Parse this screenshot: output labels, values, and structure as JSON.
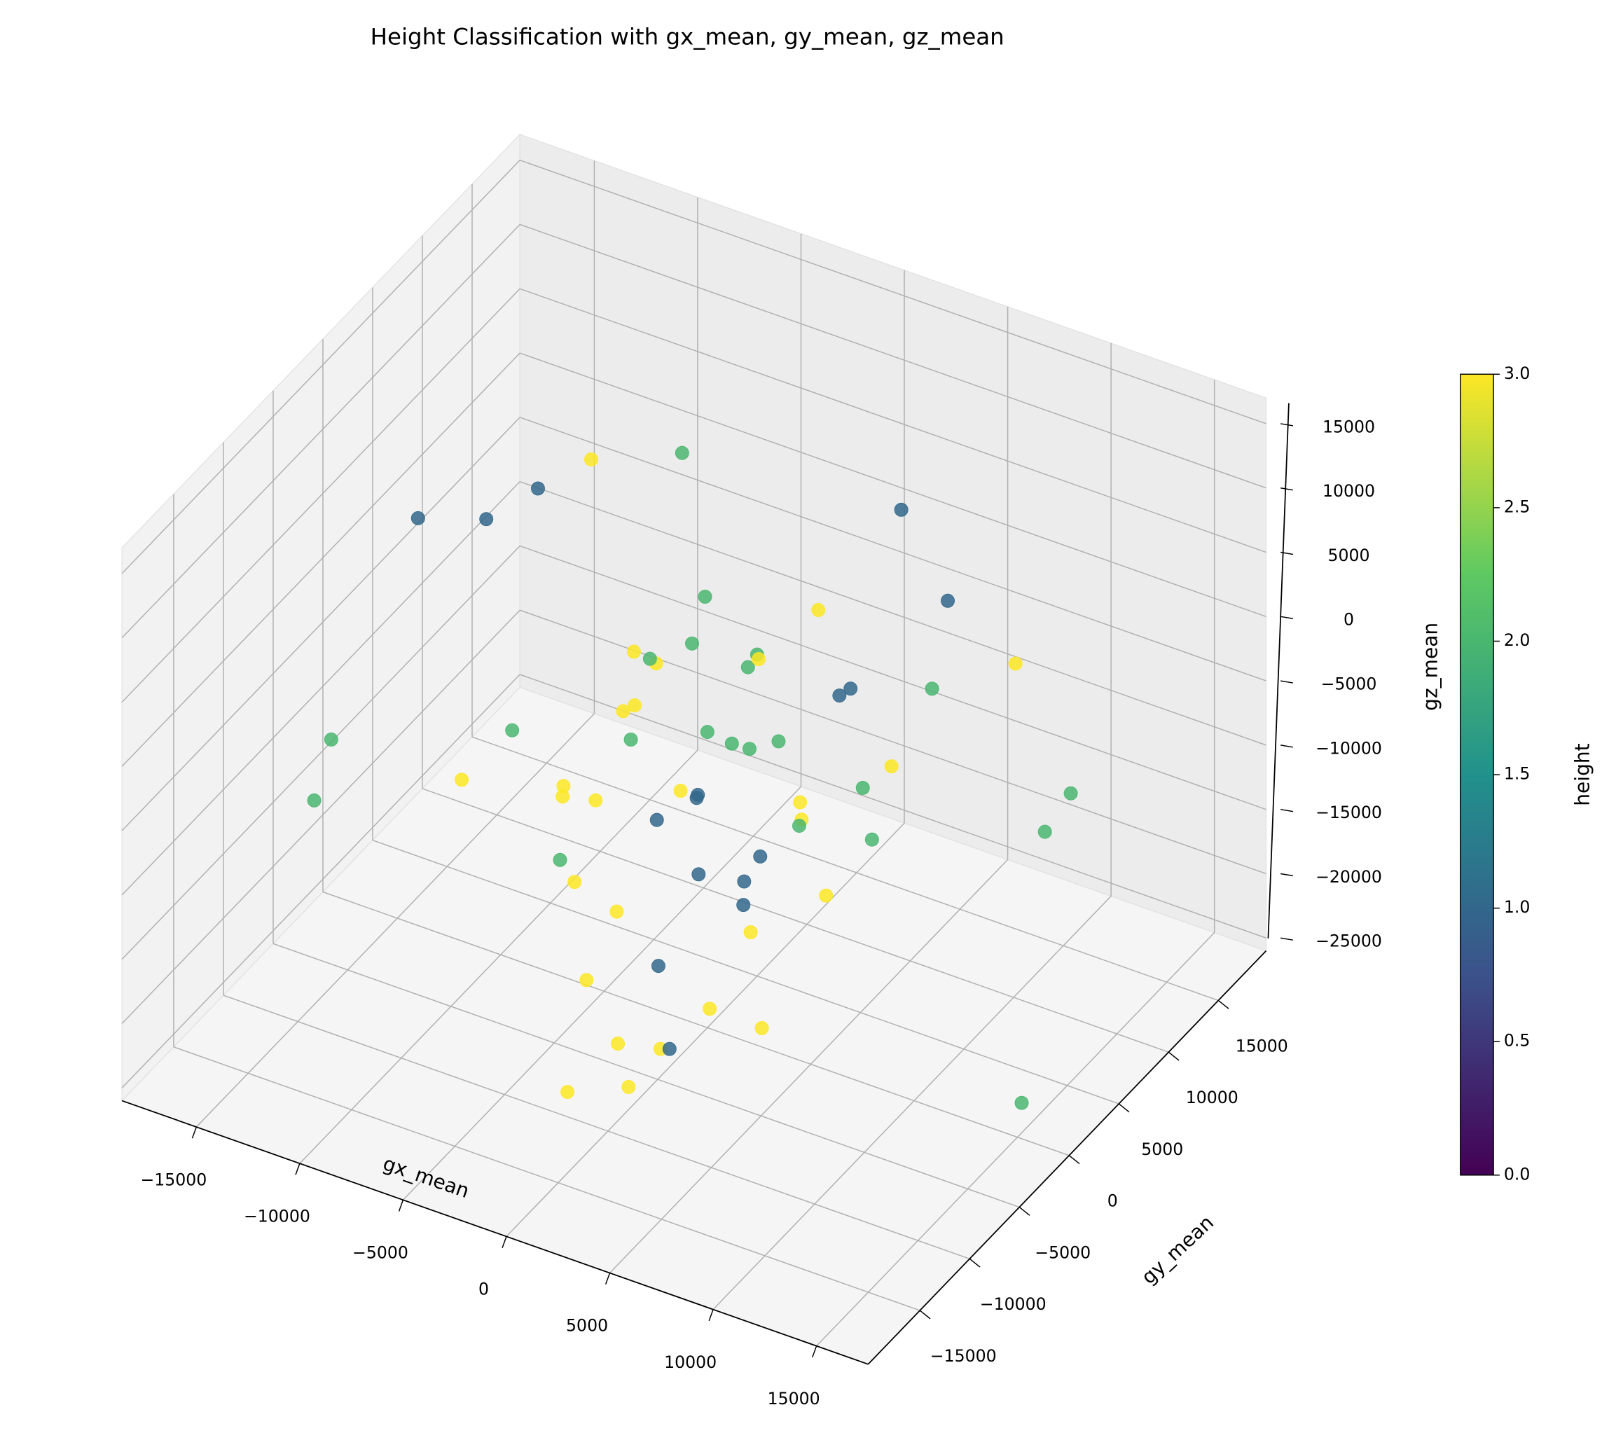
{
  "chart_data": {
    "type": "scatter3d",
    "title": "Height Classification with gx_mean, gy_mean, gz_mean",
    "xlabel": "gx_mean",
    "ylabel": "gy_mean",
    "zlabel": "gz_mean",
    "xlim": [
      -18600,
      17500
    ],
    "ylim": [
      -20200,
      19800
    ],
    "zlim": [
      -26000,
      17000
    ],
    "xticks": [
      {
        "value": -15000,
        "label": "−15000"
      },
      {
        "value": -10000,
        "label": "−10000"
      },
      {
        "value": -5000,
        "label": "−5000"
      },
      0,
      5000,
      10000,
      15000
    ],
    "yticks": [
      {
        "value": -15000,
        "label": "−15000"
      },
      {
        "value": -10000,
        "label": "−10000"
      },
      {
        "value": -5000,
        "label": "−5000"
      },
      0,
      5000,
      10000,
      15000
    ],
    "zticks": [
      {
        "value": -25000,
        "label": "−25000"
      },
      {
        "value": -20000,
        "label": "−20000"
      },
      {
        "value": -15000,
        "label": "−15000"
      },
      {
        "value": -10000,
        "label": "−10000"
      },
      {
        "value": -5000,
        "label": "−5000"
      },
      0,
      5000,
      10000,
      15000
    ],
    "grid": true,
    "colormap": "viridis",
    "colorbar": {
      "label": "height",
      "lim": [
        0,
        3
      ],
      "ticks": [
        {
          "value": 0,
          "label": "0.0"
        },
        {
          "value": 0.5,
          "label": "0.5"
        },
        {
          "value": 1,
          "label": "1.0"
        },
        {
          "value": 1.5,
          "label": "1.5"
        },
        {
          "value": 2,
          "label": "2.0"
        },
        {
          "value": 2.5,
          "label": "2.5"
        },
        {
          "value": 3,
          "label": "3.0"
        }
      ]
    },
    "x": [
      -900,
      3600,
      15300,
      15000,
      11900,
      10650,
      -18100,
      -17000,
      -13900,
      -10600,
      -8100,
      -6900,
      -11300,
      3700,
      5950,
      -2000,
      1000,
      3000,
      -4000,
      0,
      2000,
      -1000,
      1500,
      -3000,
      4000,
      -5000,
      5000,
      2500,
      -2500,
      6000,
      -6000,
      0,
      3500,
      -1500,
      1000,
      -4500,
      4500,
      7000,
      -7000,
      2000,
      -3000,
      500,
      -500,
      6500,
      -8000,
      3000,
      -2000,
      1500,
      -3500,
      8000,
      -500,
      2000,
      -6000,
      4000,
      -1000,
      5500,
      -4000,
      0,
      2500,
      7500,
      -9000,
      3000,
      -2500,
      1000,
      6000
    ],
    "y": [
      -12200,
      -12200,
      -200,
      -200,
      11800,
      11800,
      -200,
      -4200,
      -200,
      -200,
      -200,
      11800,
      11800,
      11800,
      11800,
      -1000,
      2000,
      -2000,
      1000,
      0,
      3000,
      -3000,
      -4000,
      -5000,
      1000,
      3000,
      4000,
      -1500,
      2500,
      -3000,
      -2000,
      5000,
      6000,
      -6000,
      -7000,
      -4000,
      -5000,
      2000,
      0,
      1000,
      6000,
      -2000,
      3500,
      5000,
      -3000,
      -6000,
      -8000,
      500,
      1500,
      -1000,
      -500,
      7000,
      4000,
      -3000,
      1000,
      500,
      -6500,
      -9000,
      -9000,
      7000,
      -6000,
      3000,
      -2500,
      -10000,
      -7000
    ],
    "z": [
      -21700,
      -15800,
      -23000,
      11000,
      -10500,
      -14200,
      -13700,
      -14600,
      5900,
      7700,
      11500,
      5300,
      2300,
      6900,
      1100,
      2000,
      1000,
      -1000,
      -4000,
      -3000,
      -5000,
      -8000,
      -10000,
      -6000,
      -7000,
      -2000,
      0,
      -12000,
      -11000,
      -4000,
      -9000,
      -1000,
      -3000,
      -13000,
      -15000,
      -14000,
      -12000,
      -9000,
      -12000,
      3000,
      1000,
      -6000,
      -7000,
      -6000,
      -5000,
      -18000,
      -17000,
      -16000,
      -500,
      -2000,
      4000,
      2000,
      -8000,
      -8000,
      -9500,
      -13000,
      -10000,
      -20000,
      -19000,
      -1000,
      -7000,
      -11000,
      -3000,
      -22000,
      -17000
    ],
    "c": [
      3,
      3,
      2,
      3,
      2,
      2,
      2,
      2,
      1,
      1,
      1,
      2,
      3,
      1,
      1,
      3,
      2,
      2,
      3,
      2,
      2,
      1,
      1,
      3,
      3,
      3,
      1,
      1,
      3,
      3,
      3,
      2,
      1,
      3,
      1,
      3,
      3,
      2,
      3,
      3,
      2,
      1,
      2,
      3,
      2,
      3,
      3,
      1,
      2,
      2,
      2,
      3,
      3,
      1,
      1,
      3,
      2,
      3,
      1,
      2,
      3,
      2,
      2,
      3,
      3
    ]
  }
}
